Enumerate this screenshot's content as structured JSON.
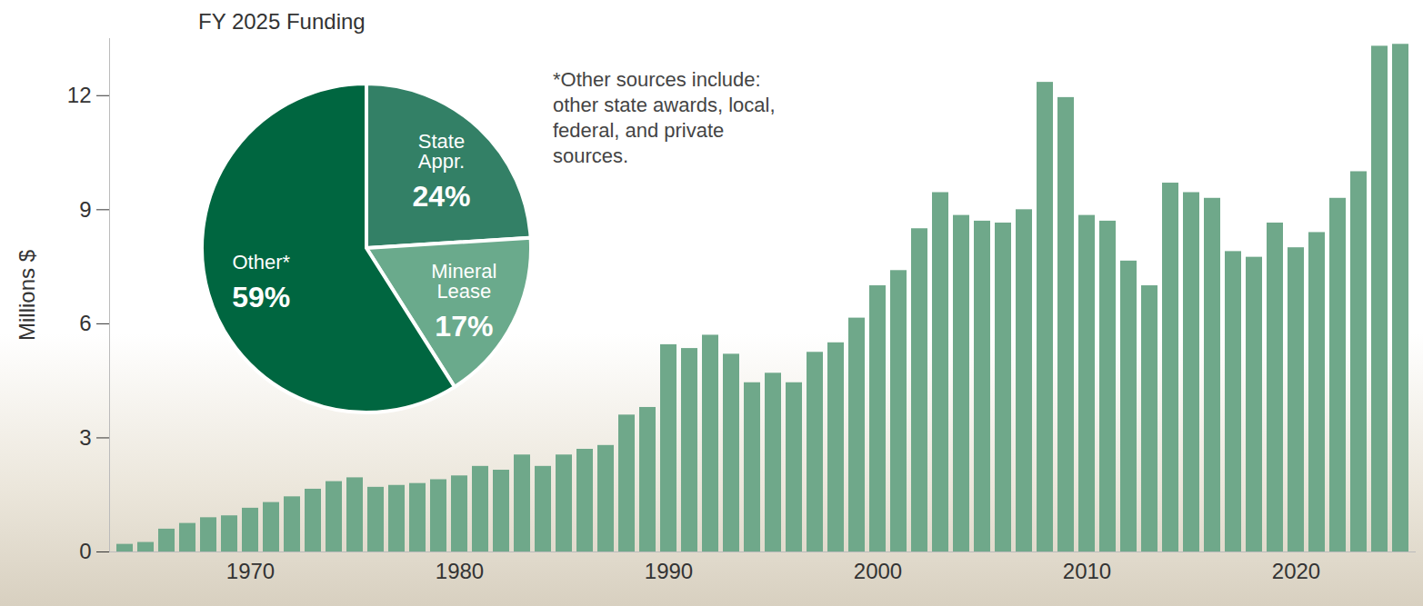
{
  "chart_data": [
    {
      "type": "bar",
      "y_label": "Millions $",
      "categories": [
        null,
        null,
        null,
        null,
        null,
        null,
        "1970",
        null,
        null,
        null,
        null,
        null,
        null,
        null,
        null,
        null,
        "1980",
        null,
        null,
        null,
        null,
        null,
        null,
        null,
        null,
        null,
        "1990",
        null,
        null,
        null,
        null,
        null,
        null,
        null,
        null,
        null,
        "2000",
        null,
        null,
        null,
        null,
        null,
        null,
        null,
        null,
        null,
        "2010",
        null,
        null,
        null,
        null,
        null,
        null,
        null,
        null,
        null,
        "2020",
        null,
        null,
        null,
        null,
        null
      ],
      "values": [
        0.2,
        0.25,
        0.6,
        0.75,
        0.9,
        0.95,
        1.15,
        1.3,
        1.45,
        1.65,
        1.85,
        1.95,
        1.7,
        1.75,
        1.8,
        1.9,
        2.0,
        2.25,
        2.15,
        2.55,
        2.25,
        2.55,
        2.7,
        2.8,
        3.6,
        3.8,
        5.45,
        5.35,
        5.7,
        5.2,
        4.45,
        4.7,
        4.45,
        5.25,
        5.5,
        6.15,
        7.0,
        7.4,
        8.5,
        9.45,
        8.85,
        8.7,
        8.65,
        9.0,
        12.35,
        11.95,
        8.85,
        8.7,
        7.65,
        7.0,
        9.7,
        9.45,
        9.3,
        7.9,
        7.75,
        8.65,
        8.0,
        8.4,
        9.3,
        10.0,
        13.3,
        13.35
      ],
      "color": "#6fa88a",
      "ylim": [
        0,
        13.5
      ],
      "yticks": [
        0,
        3,
        6,
        9,
        12
      ],
      "grid": false
    },
    {
      "type": "pie",
      "title": "FY 2025 Funding",
      "categories": [
        "State Appr.",
        "Mineral Lease",
        "Other*"
      ],
      "values": [
        24,
        17,
        59
      ],
      "value_labels": [
        "24%",
        "17%",
        "59%"
      ],
      "colors": [
        "#338066",
        "#6aaa8c",
        "#006640"
      ],
      "data_labels": true,
      "annotations": [
        "*Other sources include: other state awards, local, federal, and private sources."
      ]
    }
  ]
}
